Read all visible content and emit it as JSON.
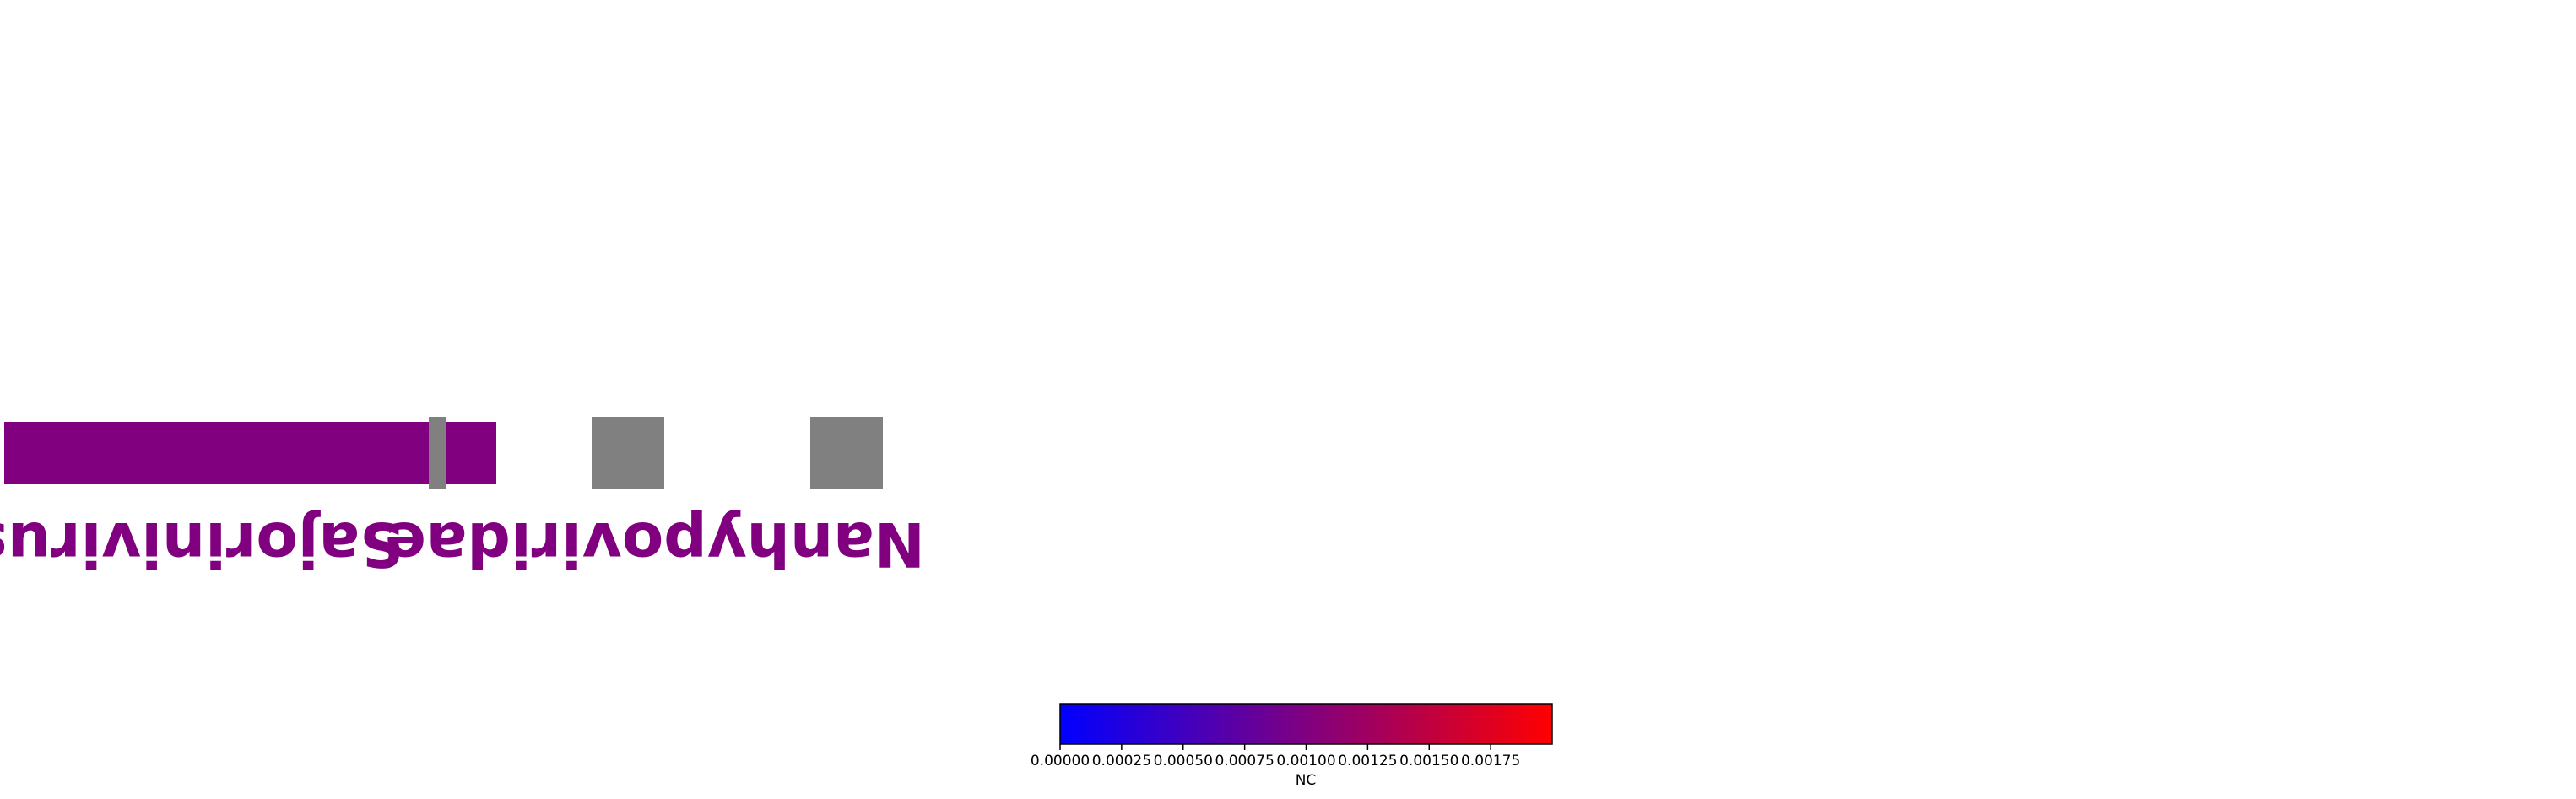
{
  "chart_data": {
    "type": "heatmap",
    "title": "",
    "legend": "none",
    "grid": false,
    "label_orientation": "upside-down (rotated 180 degrees)",
    "taxa": [
      {
        "name": "Sajorinivirus",
        "color": "#800080",
        "label_color": "#800080"
      },
      {
        "name": "Nanhypoviridae",
        "color": "#808080",
        "label_color": "#800080"
      }
    ],
    "colorbar": {
      "label": "NC",
      "vmin": 0.0,
      "vmax": 0.002,
      "colormap": [
        "#0000ff",
        "#800080",
        "#ff0000"
      ],
      "orientation": "horizontal",
      "ticks": [
        {
          "value": 0.0,
          "label": "0.00000"
        },
        {
          "value": 0.00025,
          "label": "0.00025"
        },
        {
          "value": 0.0005,
          "label": "0.00050"
        },
        {
          "value": 0.00075,
          "label": "0.00075"
        },
        {
          "value": 0.001,
          "label": "0.00100"
        },
        {
          "value": 0.00125,
          "label": "0.00125"
        },
        {
          "value": 0.0015,
          "label": "0.00150"
        },
        {
          "value": 0.00175,
          "label": "0.00175"
        }
      ]
    }
  }
}
